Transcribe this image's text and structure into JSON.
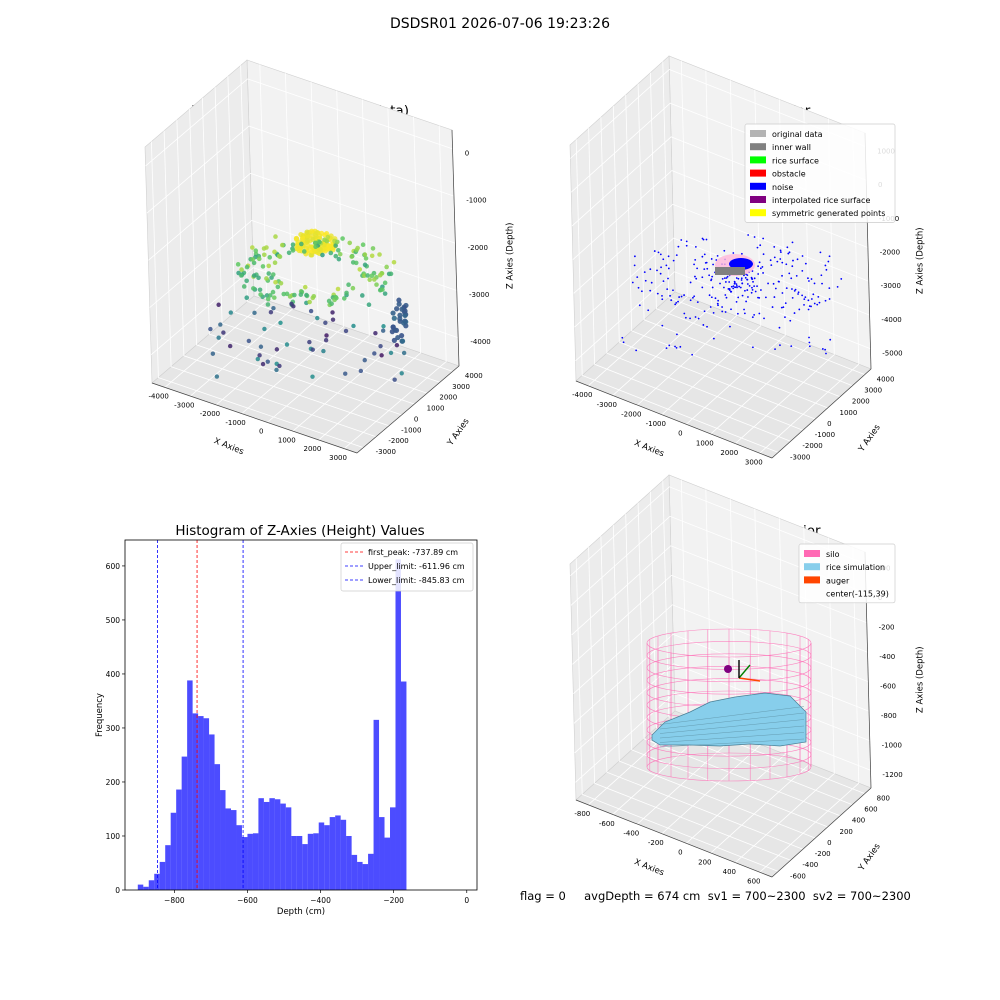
{
  "suptitle": "DSDSR01 2026-07-06 19:23:26",
  "panels": {
    "raw": {
      "title": "3D Plot of Silo Interior(row data)",
      "xlabel": "X Axies",
      "ylabel": "Y Axies",
      "zlabel": "Z Axies (Depth)",
      "xticks": [
        "-4000",
        "-3000",
        "-2000",
        "-1000",
        "0",
        "1000",
        "2000",
        "3000"
      ],
      "yticks": [
        "4000",
        "3000",
        "2000",
        "1000",
        "0",
        "-1000",
        "-2000",
        "-3000"
      ],
      "zticks": [
        "0",
        "-1000",
        "-2000",
        "-3000",
        "-4000"
      ]
    },
    "classify": {
      "title": "3D classify of Silo Interior",
      "xlabel": "X Axies",
      "ylabel": "Y Axies",
      "zlabel": "Z Axies (Depth)",
      "xticks": [
        "-4000",
        "-3000",
        "-2000",
        "-1000",
        "0",
        "1000",
        "2000",
        "3000"
      ],
      "yticks": [
        "4000",
        "3000",
        "2000",
        "1000",
        "0",
        "-1000",
        "-2000",
        "-3000"
      ],
      "zticks": [
        "1000",
        "0",
        "-1000",
        "-2000",
        "-3000",
        "-4000",
        "-5000"
      ],
      "legend": [
        {
          "label": "original data",
          "color": "#b3b3b3"
        },
        {
          "label": "inner wall",
          "color": "#808080"
        },
        {
          "label": "rice surface",
          "color": "#00ff00"
        },
        {
          "label": "obstacle",
          "color": "#ff0000"
        },
        {
          "label": "noise",
          "color": "#0000ff"
        },
        {
          "label": "interpolated rice surface",
          "color": "#800080"
        },
        {
          "label": "symmetric generated points",
          "color": "#ffff00"
        }
      ]
    },
    "simulation": {
      "title": "3D simulation of Silo Interior",
      "xlabel": "X Axies",
      "ylabel": "Y Axies",
      "zlabel": "Z Axies (Depth)",
      "xticks": [
        "-800",
        "-600",
        "-400",
        "-200",
        "0",
        "200",
        "400",
        "600"
      ],
      "yticks": [
        "800",
        "600",
        "400",
        "200",
        "0",
        "-200",
        "-400",
        "-600"
      ],
      "zticks": [
        "200",
        "0",
        "-200",
        "-400",
        "-600",
        "-800",
        "-1000",
        "-1200"
      ],
      "legend": [
        {
          "label": "silo",
          "color": "#ff69b4",
          "swatch": true
        },
        {
          "label": "rice simulation",
          "color": "#87ceeb",
          "swatch": true
        },
        {
          "label": "auger",
          "color": "#ff4500",
          "swatch": true
        },
        {
          "label": "center(-115,39)",
          "color": "#ffffff",
          "swatch": false
        }
      ]
    }
  },
  "footer": "flag = 0     avgDepth = 674 cm  sv1 = 700~2300  sv2 = 700~2300",
  "colors": {
    "hist": "#0000ff",
    "peak": "#ff0000",
    "limit": "#0000ff"
  },
  "chart_data": [
    {
      "type": "scatter",
      "title": "3D Plot of Silo Interior(row data)",
      "xlabel": "X Axies",
      "ylabel": "Y Axies",
      "zlabel": "Z Axies (Depth)",
      "xlim": [
        -4500,
        3500
      ],
      "ylim": [
        -3500,
        4500
      ],
      "zlim": [
        -4500,
        0
      ]
    },
    {
      "type": "scatter",
      "title": "3D classify of Silo Interior",
      "xlabel": "X Axies",
      "ylabel": "Y Axies",
      "zlabel": "Z Axies (Depth)",
      "series": [
        {
          "name": "original data"
        },
        {
          "name": "inner wall"
        },
        {
          "name": "rice surface"
        },
        {
          "name": "obstacle"
        },
        {
          "name": "noise"
        },
        {
          "name": "interpolated rice surface"
        },
        {
          "name": "symmetric generated points"
        }
      ]
    },
    {
      "type": "bar",
      "title": "Histogram of Z-Axies (Height) Values",
      "xlabel": "Depth (cm)",
      "ylabel": "Frequency",
      "xlim": [
        -935,
        28
      ],
      "ylim": [
        0,
        648
      ],
      "xticks": [
        -800,
        -600,
        -400,
        -200,
        0
      ],
      "yticks": [
        0,
        100,
        200,
        300,
        400,
        500,
        600
      ],
      "bin_start": -900,
      "bin_width": 15,
      "values": [
        10,
        6,
        18,
        30,
        52,
        83,
        143,
        186,
        247,
        388,
        327,
        322,
        318,
        288,
        233,
        185,
        151,
        148,
        120,
        98,
        104,
        105,
        170,
        163,
        170,
        168,
        160,
        153,
        100,
        100,
        85,
        104,
        105,
        125,
        120,
        135,
        138,
        130,
        100,
        65,
        52,
        48,
        67,
        315,
        135,
        97,
        153,
        612,
        386
      ],
      "vlines": [
        {
          "name": "first_peak: -737.89 cm",
          "x": -737.89,
          "color": "#ff0000"
        },
        {
          "name": "Upper_limit: -611.96 cm",
          "x": -611.96,
          "color": "#0000ff"
        },
        {
          "name": "Lower_limit: -845.83 cm",
          "x": -845.83,
          "color": "#0000ff"
        }
      ]
    },
    {
      "type": "scatter",
      "title": "3D simulation of Silo Interior",
      "xlabel": "X Axies",
      "ylabel": "Y Axies",
      "zlabel": "Z Axies (Depth)",
      "series": [
        {
          "name": "silo"
        },
        {
          "name": "rice simulation"
        },
        {
          "name": "auger"
        }
      ],
      "annotations": [
        "center(-115,39)"
      ]
    }
  ]
}
